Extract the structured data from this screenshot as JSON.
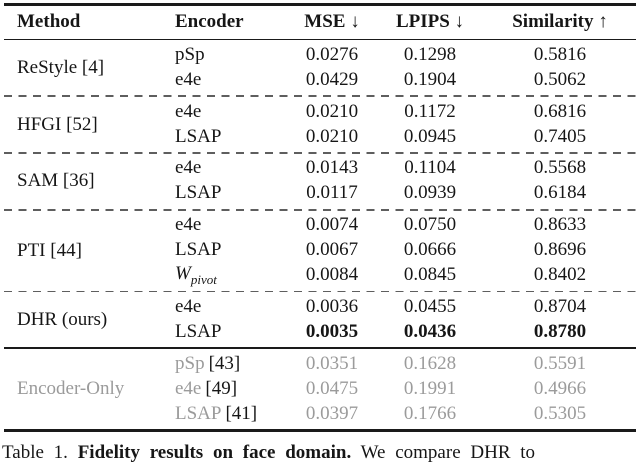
{
  "header": {
    "method": "Method",
    "encoder": "Encoder",
    "mse": "MSE",
    "mse_arrow": "↓",
    "lpips": "LPIPS",
    "lpips_arrow": "↓",
    "similarity": "Similarity",
    "similarity_arrow": "↑"
  },
  "colors": {
    "text": "#161616",
    "muted_text": "#9b9b9b",
    "rule": "#1a1a1a",
    "dashed_line": "#5e5e5e",
    "background": "#ffffff"
  },
  "groups": [
    {
      "method": "ReStyle [4]",
      "rows": [
        {
          "encoder": "pSp",
          "mse": "0.0276",
          "lpips": "0.1298",
          "sim": "0.5816"
        },
        {
          "encoder": "e4e",
          "mse": "0.0429",
          "lpips": "0.1904",
          "sim": "0.5062"
        }
      ]
    },
    {
      "method": "HFGI [52]",
      "rows": [
        {
          "encoder": "e4e",
          "mse": "0.0210",
          "lpips": "0.1172",
          "sim": "0.6816"
        },
        {
          "encoder": "LSAP",
          "mse": "0.0210",
          "lpips": "0.0945",
          "sim": "0.7405"
        }
      ]
    },
    {
      "method": "SAM [36]",
      "rows": [
        {
          "encoder": "e4e",
          "mse": "0.0143",
          "lpips": "0.1104",
          "sim": "0.5568"
        },
        {
          "encoder": "LSAP",
          "mse": "0.0117",
          "lpips": "0.0939",
          "sim": "0.6184"
        }
      ]
    },
    {
      "method": "PTI [44]",
      "rows": [
        {
          "encoder": "e4e",
          "mse": "0.0074",
          "lpips": "0.0750",
          "sim": "0.8633"
        },
        {
          "encoder": "LSAP",
          "mse": "0.0067",
          "lpips": "0.0666",
          "sim": "0.8696"
        },
        {
          "encoder_base": "W",
          "encoder_sub": "pivot",
          "mse": "0.0084",
          "lpips": "0.0845",
          "sim": "0.8402"
        }
      ]
    },
    {
      "method": "DHR (ours)",
      "rows": [
        {
          "encoder": "e4e",
          "mse": "0.0036",
          "lpips": "0.0455",
          "sim": "0.8704"
        },
        {
          "encoder": "LSAP",
          "mse": "0.0035",
          "lpips": "0.0436",
          "sim": "0.8780",
          "bold": true
        }
      ]
    },
    {
      "method": "Encoder-Only",
      "muted": true,
      "rows": [
        {
          "encoder": "pSp",
          "cite": "[43]",
          "mse": "0.0351",
          "lpips": "0.1628",
          "sim": "0.5591"
        },
        {
          "encoder": "e4e",
          "cite": "[49]",
          "mse": "0.0475",
          "lpips": "0.1991",
          "sim": "0.4966"
        },
        {
          "encoder": "LSAP",
          "cite": "[41]",
          "mse": "0.0397",
          "lpips": "0.1766",
          "sim": "0.5305"
        }
      ]
    }
  ],
  "caption": {
    "prefix": "Table 1.",
    "bold": "Fidelity results on face domain.",
    "rest": "We compare DHR to"
  }
}
